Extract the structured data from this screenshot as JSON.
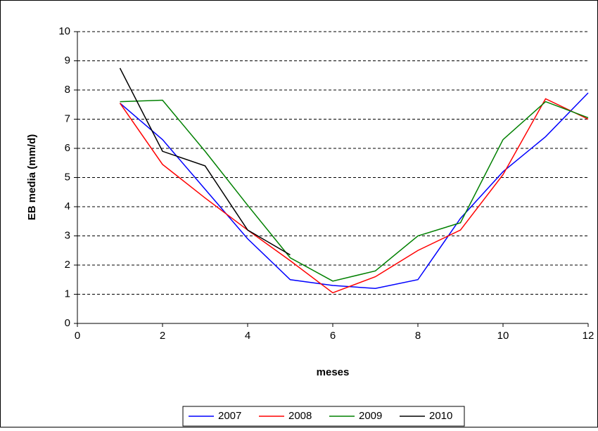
{
  "chart_data": {
    "type": "line",
    "x_label": "meses",
    "y_label": "EB media (mm/d)",
    "x": [
      1,
      2,
      3,
      4,
      5,
      6,
      7,
      8,
      9,
      10,
      11,
      12
    ],
    "series": [
      {
        "name": "2007",
        "color": "#0000ff",
        "values": [
          7.55,
          6.3,
          4.6,
          2.9,
          1.5,
          1.3,
          1.2,
          1.5,
          3.6,
          5.2,
          6.4,
          7.9
        ]
      },
      {
        "name": "2008",
        "color": "#ff0000",
        "values": [
          7.55,
          5.45,
          4.3,
          3.2,
          2.15,
          1.05,
          1.6,
          2.5,
          3.2,
          5.1,
          7.7,
          7.0
        ]
      },
      {
        "name": "2009",
        "color": "#008000",
        "values": [
          7.6,
          7.65,
          5.9,
          4.05,
          2.25,
          1.45,
          1.8,
          3.0,
          3.45,
          6.3,
          7.6,
          7.05
        ]
      },
      {
        "name": "2010",
        "color": "#000000",
        "values": [
          8.75,
          5.9,
          5.4,
          3.2,
          2.35,
          null,
          null,
          null,
          null,
          null,
          null,
          null
        ]
      }
    ],
    "xlim": [
      0,
      12
    ],
    "xticks": [
      0,
      2,
      4,
      6,
      8,
      10,
      12
    ],
    "ylim": [
      0,
      10
    ],
    "yticks": [
      0,
      1,
      2,
      3,
      4,
      5,
      6,
      7,
      8,
      9,
      10
    ],
    "grid": true,
    "legend": "bottom"
  }
}
